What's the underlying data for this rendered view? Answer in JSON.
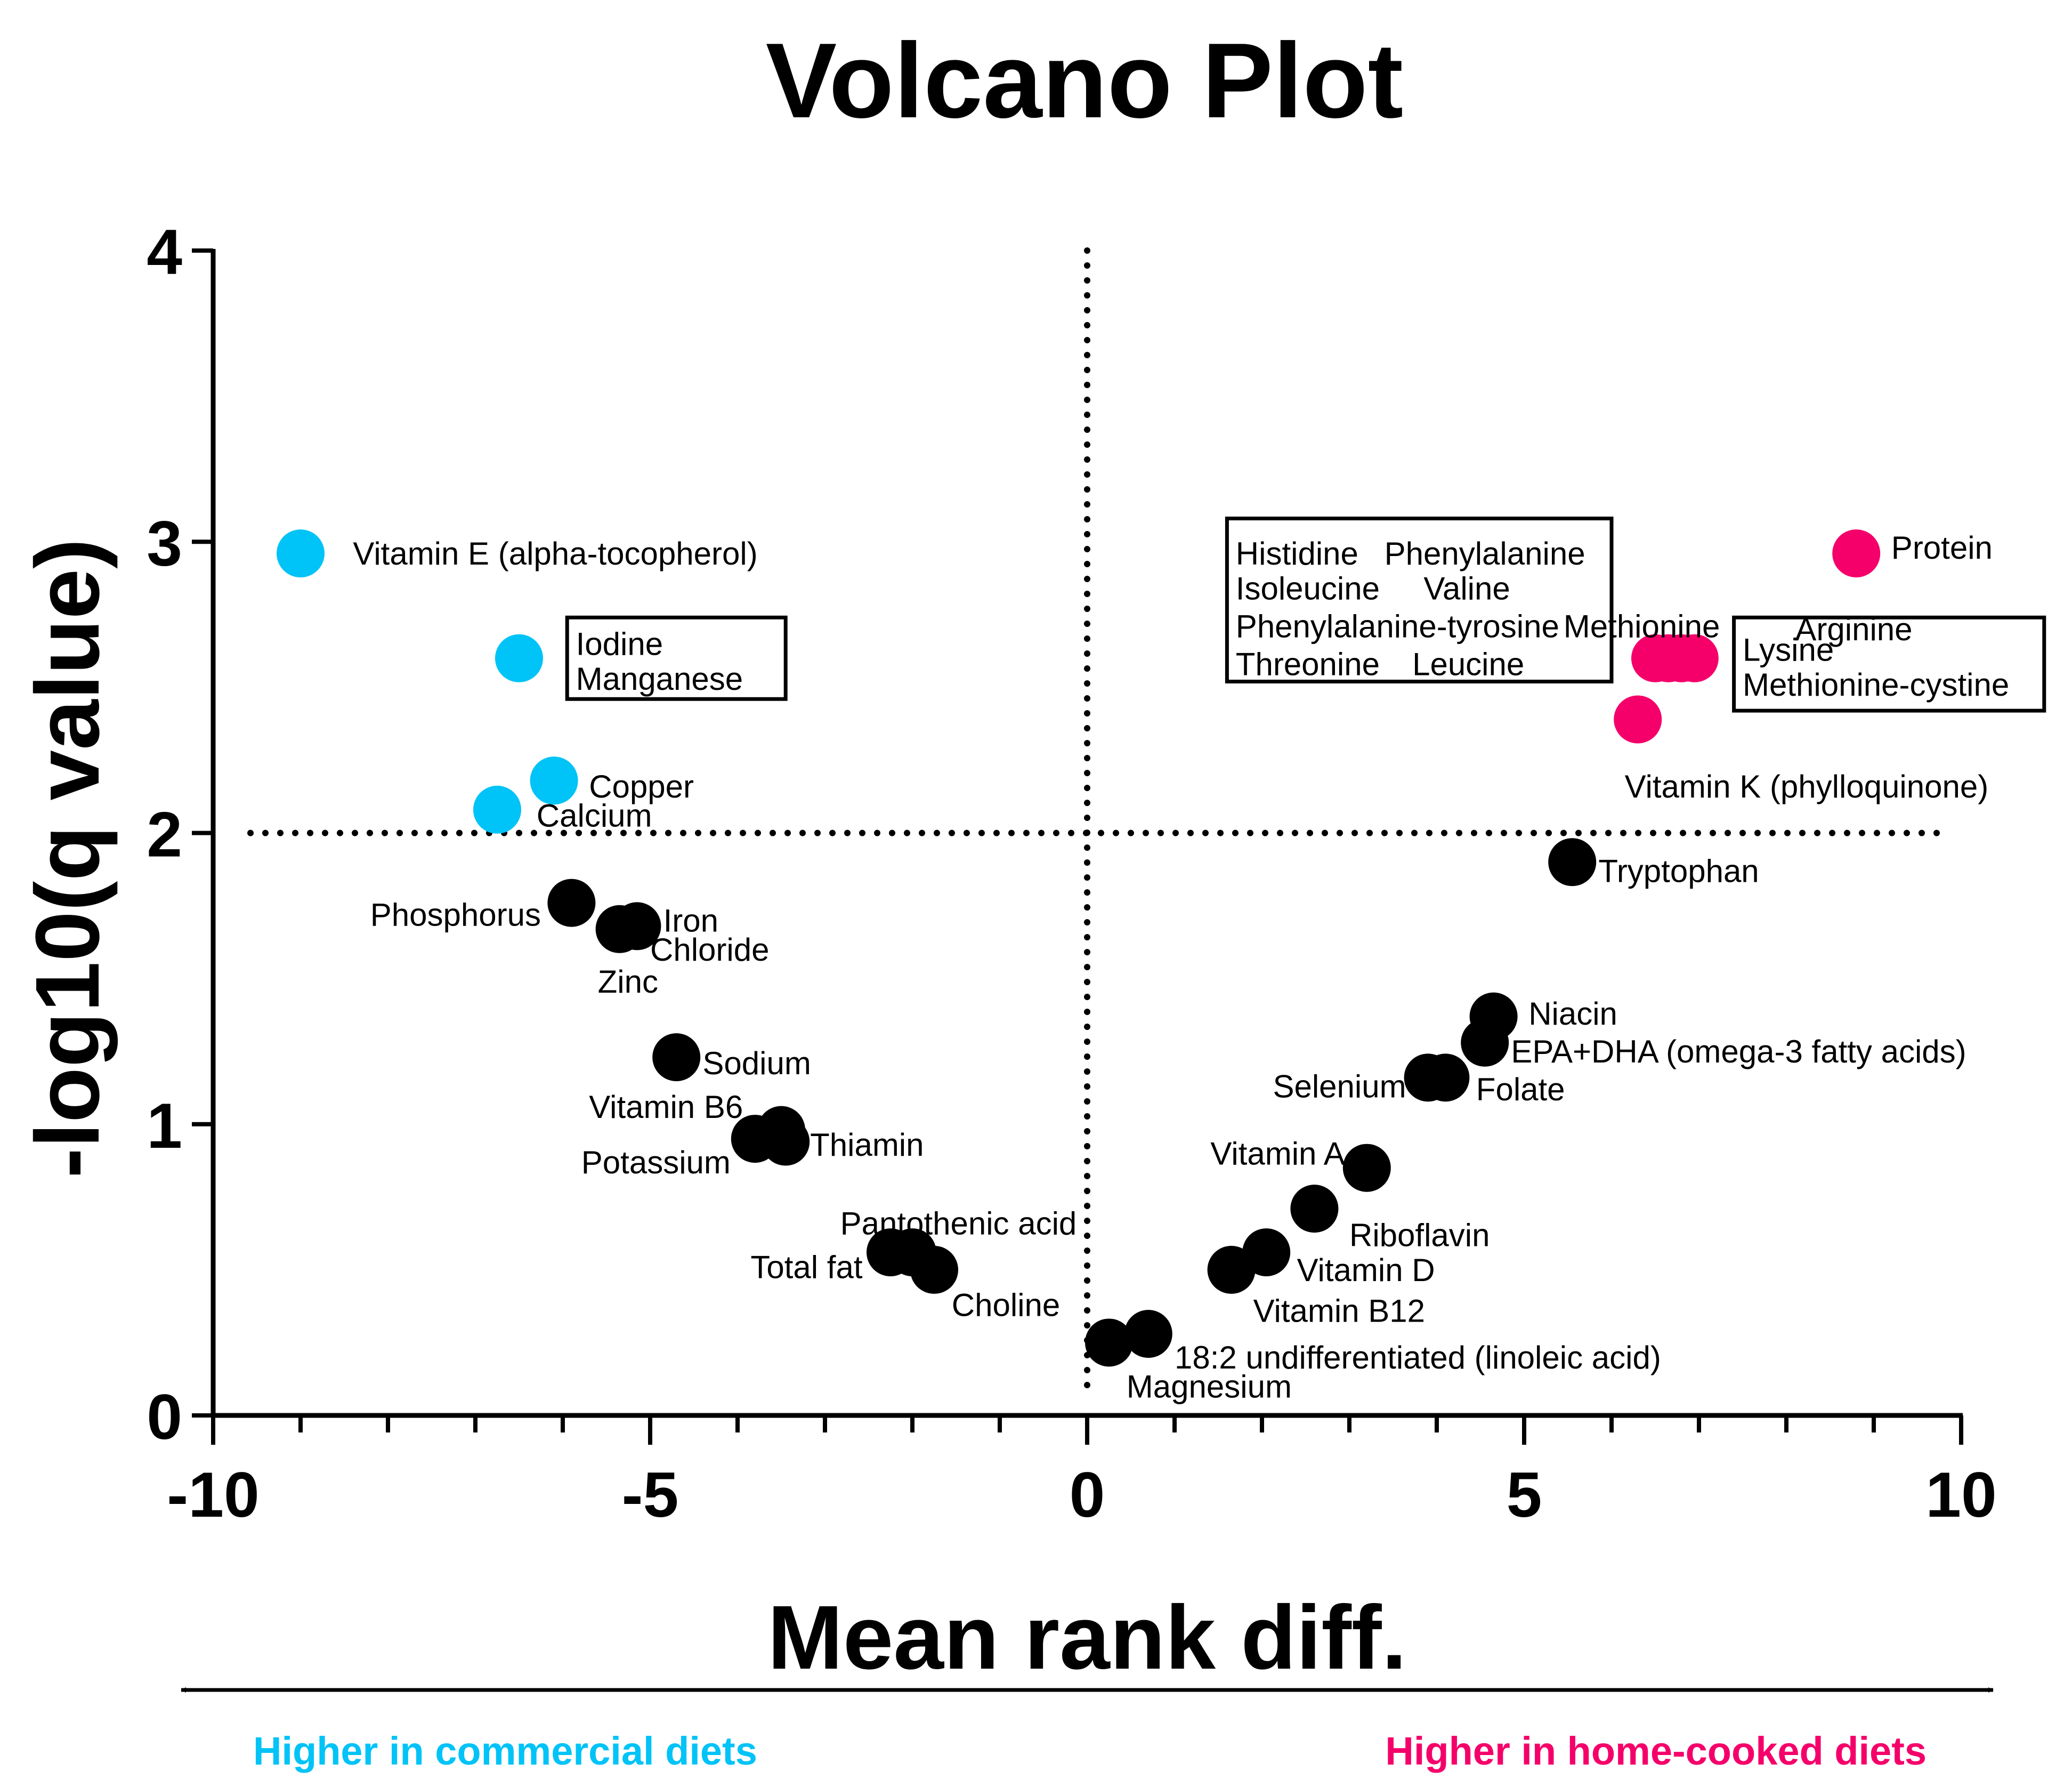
{
  "chart_data": {
    "type": "scatter",
    "title": "Volcano Plot",
    "xlabel": "Mean rank diff.",
    "ylabel": "-log10(q value)",
    "xlim": [
      -10,
      10
    ],
    "ylim": [
      0,
      4
    ],
    "x_ticks": [
      -10,
      -5,
      0,
      5,
      10
    ],
    "x_tick_labels": [
      "-10",
      "-5",
      "0",
      "5",
      "10"
    ],
    "y_ticks": [
      0,
      1,
      2,
      3,
      4
    ],
    "y_tick_labels": [
      "0",
      "1",
      "2",
      "3",
      "4"
    ],
    "threshold_y": 2,
    "threshold_x": 0,
    "colors": {
      "commercial": "#00c3f7",
      "home": "#f5006a",
      "ns": "#000000"
    },
    "points": [
      {
        "x": -9.0,
        "y": 2.96,
        "group": "commercial"
      },
      {
        "x": -6.5,
        "y": 2.6,
        "group": "commercial"
      },
      {
        "x": -6.1,
        "y": 2.18,
        "group": "commercial"
      },
      {
        "x": -6.75,
        "y": 2.08,
        "group": "commercial"
      },
      {
        "x": 8.8,
        "y": 2.96,
        "group": "home"
      },
      {
        "x": 6.5,
        "y": 2.6,
        "group": "home"
      },
      {
        "x": 6.65,
        "y": 2.6,
        "group": "home"
      },
      {
        "x": 6.8,
        "y": 2.6,
        "group": "home"
      },
      {
        "x": 6.95,
        "y": 2.6,
        "group": "home"
      },
      {
        "x": 6.3,
        "y": 2.39,
        "group": "home"
      },
      {
        "x": 5.55,
        "y": 1.9,
        "group": "ns"
      },
      {
        "x": -5.9,
        "y": 1.76,
        "group": "ns"
      },
      {
        "x": -5.35,
        "y": 1.67,
        "group": "ns"
      },
      {
        "x": -5.15,
        "y": 1.68,
        "group": "ns"
      },
      {
        "x": 4.65,
        "y": 1.37,
        "group": "ns"
      },
      {
        "x": 4.55,
        "y": 1.28,
        "group": "ns"
      },
      {
        "x": 3.9,
        "y": 1.16,
        "group": "ns"
      },
      {
        "x": 4.1,
        "y": 1.16,
        "group": "ns"
      },
      {
        "x": -4.7,
        "y": 1.23,
        "group": "ns"
      },
      {
        "x": -3.8,
        "y": 0.95,
        "group": "ns"
      },
      {
        "x": -3.5,
        "y": 0.98,
        "group": "ns"
      },
      {
        "x": -3.45,
        "y": 0.94,
        "group": "ns"
      },
      {
        "x": 3.2,
        "y": 0.85,
        "group": "ns"
      },
      {
        "x": 2.6,
        "y": 0.71,
        "group": "ns"
      },
      {
        "x": 2.05,
        "y": 0.56,
        "group": "ns"
      },
      {
        "x": 1.65,
        "y": 0.5,
        "group": "ns"
      },
      {
        "x": -2.25,
        "y": 0.56,
        "group": "ns"
      },
      {
        "x": -2.0,
        "y": 0.56,
        "group": "ns"
      },
      {
        "x": -1.75,
        "y": 0.5,
        "group": "ns"
      },
      {
        "x": 0.7,
        "y": 0.28,
        "group": "ns"
      },
      {
        "x": 0.25,
        "y": 0.25,
        "group": "ns"
      }
    ],
    "labels": [
      {
        "text": "Vitamin E (alpha-tocopherol)",
        "x": -8.4,
        "y": 2.96,
        "anchor": "start"
      },
      {
        "text": "Iodine",
        "x": -5.85,
        "y": 2.65,
        "anchor": "start"
      },
      {
        "text": "Manganese",
        "x": -5.85,
        "y": 2.53,
        "anchor": "start"
      },
      {
        "text": "Copper",
        "x": -5.7,
        "y": 2.16,
        "anchor": "start"
      },
      {
        "text": "Calcium",
        "x": -6.3,
        "y": 2.06,
        "anchor": "start"
      },
      {
        "text": "Phosphorus",
        "x": -6.25,
        "y": 1.72,
        "anchor": "end"
      },
      {
        "text": "Iron",
        "x": -4.85,
        "y": 1.7,
        "anchor": "start"
      },
      {
        "text": "Chloride",
        "x": -5.0,
        "y": 1.6,
        "anchor": "start"
      },
      {
        "text": "Zinc",
        "x": -5.6,
        "y": 1.49,
        "anchor": "start"
      },
      {
        "text": "Sodium",
        "x": -4.4,
        "y": 1.21,
        "anchor": "start"
      },
      {
        "text": "Vitamin B6",
        "x": -5.7,
        "y": 1.06,
        "anchor": "start"
      },
      {
        "text": "Thiamin",
        "x": -3.17,
        "y": 0.93,
        "anchor": "start"
      },
      {
        "text": "Potassium",
        "x": -4.08,
        "y": 0.87,
        "anchor": "end"
      },
      {
        "text": "Pantothenic acid",
        "x": -0.12,
        "y": 0.66,
        "anchor": "end"
      },
      {
        "text": "Total fat",
        "x": -2.57,
        "y": 0.51,
        "anchor": "end"
      },
      {
        "text": "Choline",
        "x": -1.55,
        "y": 0.38,
        "anchor": "start"
      },
      {
        "text": "18:2 undifferentiated (linoleic acid)",
        "x": 1.0,
        "y": 0.2,
        "anchor": "start"
      },
      {
        "text": "Magnesium",
        "x": 0.45,
        "y": 0.1,
        "anchor": "start"
      },
      {
        "text": "Vitamin B12",
        "x": 1.9,
        "y": 0.36,
        "anchor": "start"
      },
      {
        "text": "Vitamin D",
        "x": 2.4,
        "y": 0.5,
        "anchor": "start"
      },
      {
        "text": "Riboflavin",
        "x": 3.0,
        "y": 0.62,
        "anchor": "start"
      },
      {
        "text": "Vitamin A",
        "x": 2.95,
        "y": 0.9,
        "anchor": "end"
      },
      {
        "text": "Selenium",
        "x": 3.65,
        "y": 1.13,
        "anchor": "end"
      },
      {
        "text": "Folate",
        "x": 4.45,
        "y": 1.12,
        "anchor": "start"
      },
      {
        "text": "EPA+DHA (omega-3 fatty acids)",
        "x": 4.85,
        "y": 1.25,
        "anchor": "start"
      },
      {
        "text": "Niacin",
        "x": 5.05,
        "y": 1.38,
        "anchor": "start"
      },
      {
        "text": "Tryptophan",
        "x": 5.85,
        "y": 1.87,
        "anchor": "start"
      },
      {
        "text": "Vitamin K (phylloquinone)",
        "x": 6.15,
        "y": 2.16,
        "anchor": "start"
      },
      {
        "text": "Lysine",
        "x": 7.5,
        "y": 2.63,
        "anchor": "start"
      },
      {
        "text": "Methionine-cystine",
        "x": 7.5,
        "y": 2.51,
        "anchor": "start"
      },
      {
        "text": "Methionine",
        "x": 5.45,
        "y": 2.71,
        "anchor": "start"
      },
      {
        "text": "Arginine",
        "x": 8.1,
        "y": 2.7,
        "anchor": "start"
      },
      {
        "text": "Protein",
        "x": 9.2,
        "y": 2.98,
        "anchor": "start"
      },
      {
        "text": "Histidine",
        "x": 1.7,
        "y": 2.96,
        "anchor": "start"
      },
      {
        "text": "Phenylalanine",
        "x": 3.4,
        "y": 2.96,
        "anchor": "start"
      },
      {
        "text": "Isoleucine",
        "x": 1.7,
        "y": 2.84,
        "anchor": "start"
      },
      {
        "text": "Valine",
        "x": 3.85,
        "y": 2.84,
        "anchor": "start"
      },
      {
        "text": "Phenylalanine-tyrosine",
        "x": 1.7,
        "y": 2.71,
        "anchor": "start"
      },
      {
        "text": "Threonine",
        "x": 1.7,
        "y": 2.58,
        "anchor": "start"
      },
      {
        "text": "Leucine",
        "x": 3.72,
        "y": 2.58,
        "anchor": "start"
      }
    ],
    "boxes": [
      {
        "x0": -5.95,
        "x1": -3.45,
        "y0": 2.74,
        "y1": 2.46
      },
      {
        "x0": 7.4,
        "x1": 10.95,
        "y0": 2.74,
        "y1": 2.42
      },
      {
        "x0": 1.6,
        "x1": 6.0,
        "y0": 3.08,
        "y1": 2.52
      }
    ],
    "direction_left": "Higher in commercial diets",
    "direction_right": "Higher in home-cooked diets"
  }
}
